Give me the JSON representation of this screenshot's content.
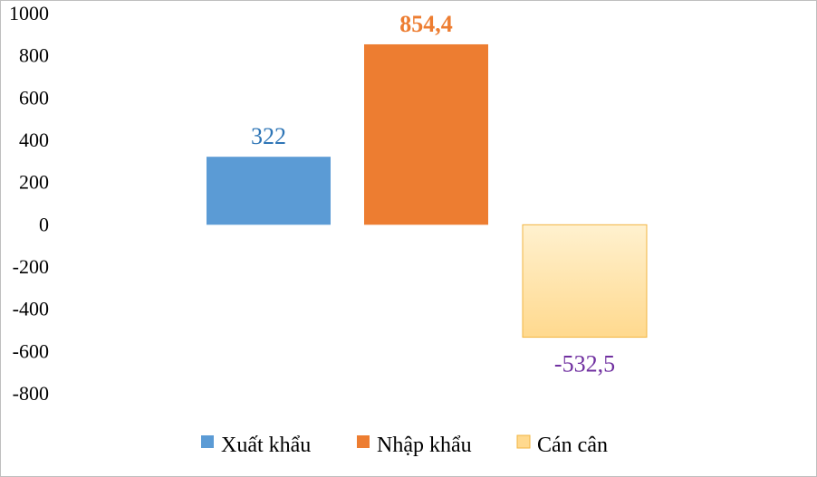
{
  "chart_data": {
    "type": "bar",
    "categories": [
      "Xuất khẩu",
      "Nhập khẩu",
      "Cán cân"
    ],
    "values": [
      322,
      854.4,
      -532.5
    ],
    "data_labels": [
      "322",
      "854,4",
      "-532,5"
    ],
    "yticks": [
      "1000",
      "800",
      "600",
      "400",
      "200",
      "0",
      "-200",
      "-400",
      "-600",
      "-800"
    ],
    "ylim": [
      -800,
      1000
    ],
    "grid": false,
    "legend_position": "bottom",
    "colors": {
      "xuat_khau": "#5b9bd5",
      "nhap_khau": "#ed7d31",
      "can_can": "#ffd98e",
      "can_can_border": "#f2b440",
      "label_xuat_khau": "#2e75b6",
      "label_nhap_khau": "#ed7d31",
      "label_can_can": "#7030a0"
    }
  }
}
